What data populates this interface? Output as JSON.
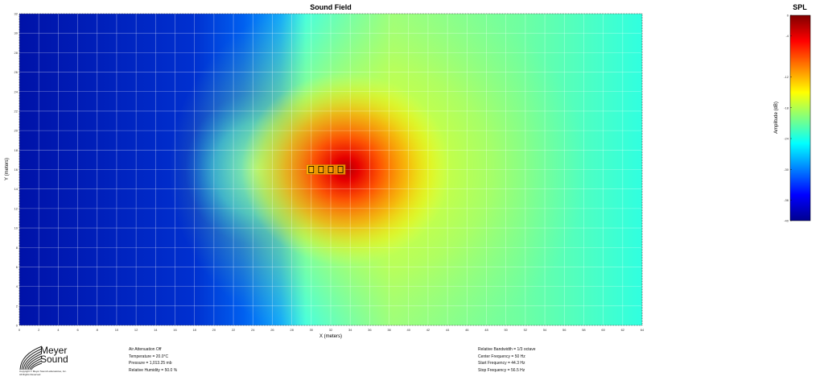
{
  "chart_data": {
    "type": "heatmap",
    "title": "Sound Field",
    "xlabel": "X (meters)",
    "ylabel": "Y (meters)",
    "xlim": [
      0,
      64
    ],
    "ylim": [
      0,
      32
    ],
    "x_ticks": [
      0,
      2,
      4,
      6,
      8,
      10,
      12,
      14,
      16,
      18,
      20,
      22,
      24,
      26,
      28,
      30,
      32,
      34,
      36,
      38,
      40,
      42,
      44,
      46,
      48,
      50,
      52,
      54,
      56,
      58,
      60,
      62,
      64
    ],
    "y_ticks": [
      0,
      2,
      4,
      6,
      8,
      10,
      12,
      14,
      16,
      18,
      20,
      22,
      24,
      26,
      28,
      30,
      32
    ],
    "grid": true,
    "colorbar": {
      "title": "SPL",
      "label": "Amplitude (dB)",
      "range": [
        -40,
        0
      ],
      "ticks": [
        0,
        -4,
        -12,
        -18,
        -24,
        -30,
        -36,
        -40
      ]
    },
    "sources": [
      {
        "x": 30,
        "y": 16
      },
      {
        "x": 31,
        "y": 16
      },
      {
        "x": 32,
        "y": 16
      },
      {
        "x": 33,
        "y": 16
      }
    ]
  },
  "conditions_left": [
    "Air Attenuation Off",
    "Temperature = 20.0°C",
    "Pressure = 1,013.25 mb",
    "Relative Humidity = 50.0 %"
  ],
  "conditions_right": [
    "Relative Bandwidth = 1/3 octave",
    "Center Frequency = 50 Hz",
    "Start Frequency = 44.3 Hz",
    "Stop Frequency = 56.5 Hz"
  ],
  "logo": {
    "name_line1": "Meyer",
    "name_line2": "Sound",
    "copyright_line1": "Copyright © Meyer Sound Laboratories, Inc.",
    "copyright_line2": "All Rights Reserved"
  }
}
